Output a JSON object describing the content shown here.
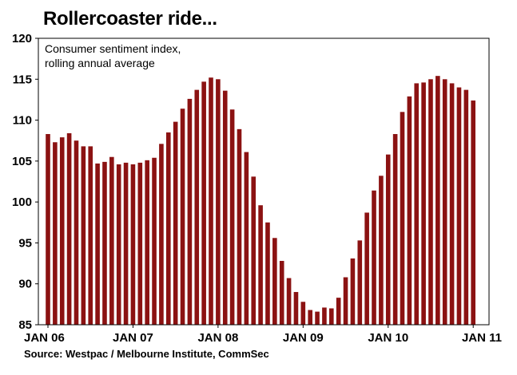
{
  "chart_data": {
    "type": "bar",
    "title": "Rollercoaster ride...",
    "subtitle_lines": [
      "Consumer sentiment index,",
      "rolling annual average"
    ],
    "source": "Source: Westpac / Melbourne Institute, CommSec",
    "ylim": [
      85,
      120
    ],
    "yticks": [
      85,
      90,
      95,
      100,
      105,
      110,
      115,
      120
    ],
    "xtick_labels": [
      "JAN 06",
      "JAN 07",
      "JAN 08",
      "JAN 09",
      "JAN 10",
      "JAN 11"
    ],
    "xtick_index": [
      0,
      12,
      24,
      36,
      48,
      60
    ],
    "grid": false,
    "bar_color": "#8b1212",
    "values": [
      108.3,
      107.3,
      107.9,
      108.4,
      107.5,
      106.8,
      106.8,
      104.7,
      104.9,
      105.5,
      104.6,
      104.8,
      104.6,
      104.8,
      105.1,
      105.4,
      107.1,
      108.5,
      109.8,
      111.4,
      112.6,
      113.7,
      114.7,
      115.2,
      115.0,
      113.6,
      111.3,
      108.9,
      106.1,
      103.1,
      99.6,
      97.5,
      95.6,
      92.8,
      90.7,
      89.0,
      87.8,
      86.8,
      86.6,
      87.1,
      87.0,
      88.3,
      90.8,
      93.1,
      95.3,
      98.7,
      101.4,
      103.2,
      105.8,
      108.3,
      111.0,
      112.9,
      114.5,
      114.6,
      115.0,
      115.4,
      115.0,
      114.5,
      114.0,
      113.7,
      112.4
    ]
  }
}
